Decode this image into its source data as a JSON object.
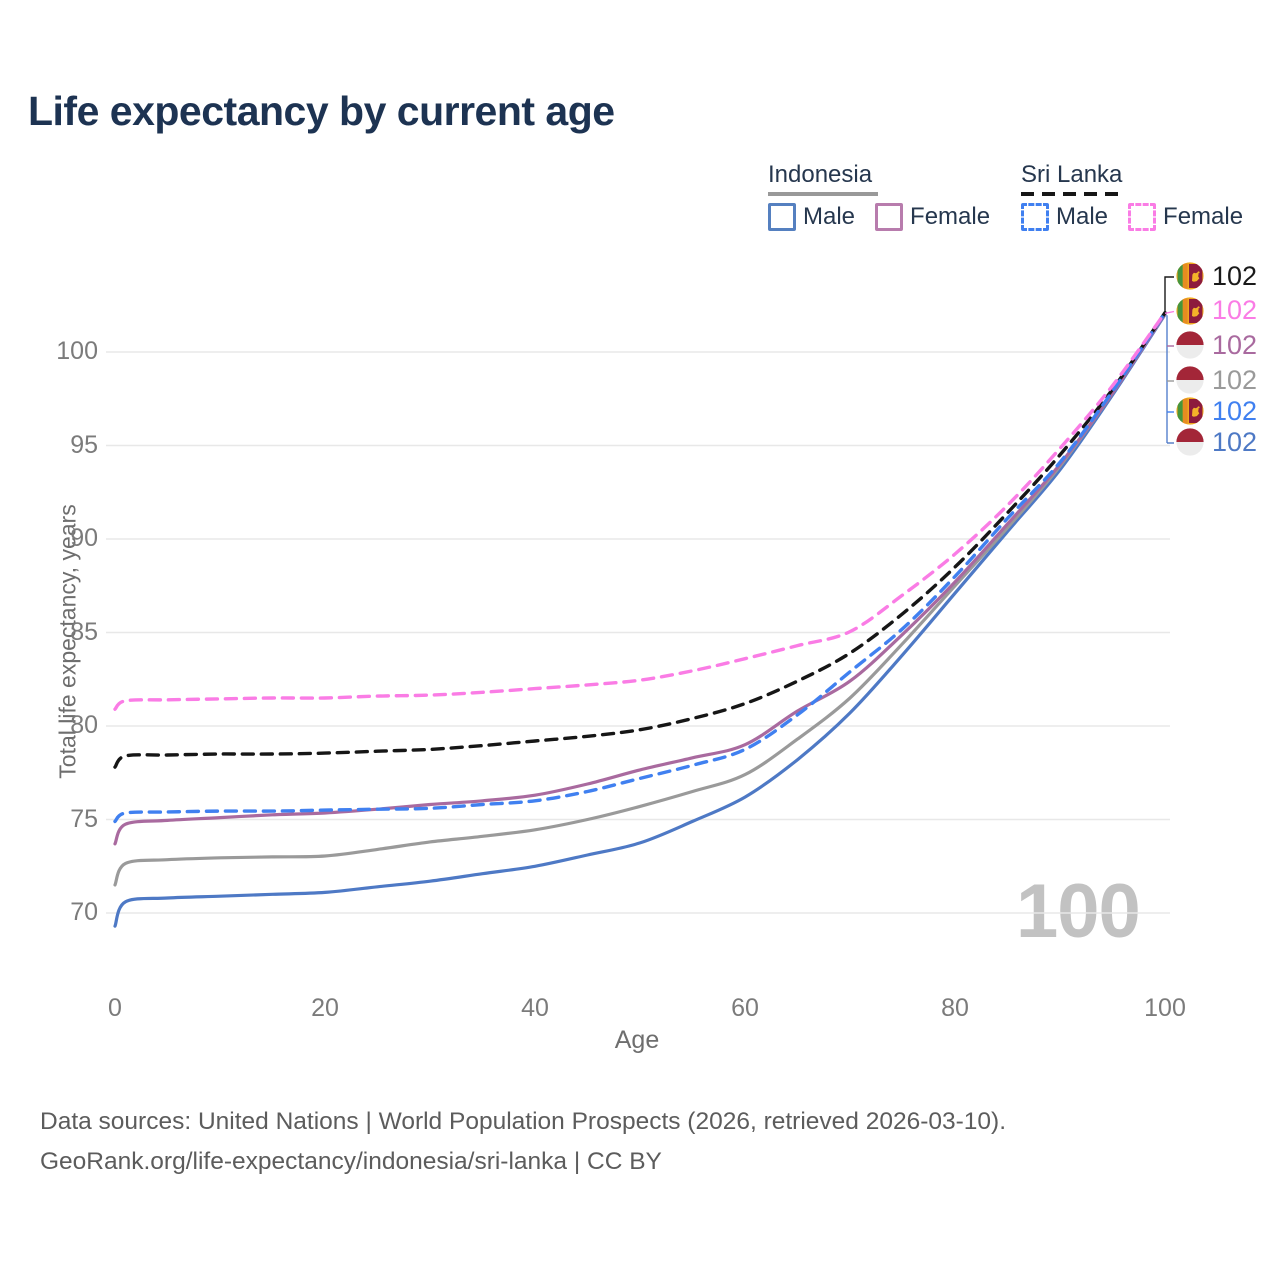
{
  "title": "Life expectancy by current age",
  "legend": {
    "groups": [
      {
        "name": "Indonesia",
        "line_style": "solid",
        "line_color": "#999999",
        "items": [
          {
            "label": "Male",
            "color": "#5580c0",
            "dash": false
          },
          {
            "label": "Female",
            "color": "#b87cad",
            "dash": false
          }
        ]
      },
      {
        "name": "Sri Lanka",
        "line_style": "dashed",
        "line_color": "#161616",
        "items": [
          {
            "label": "Male",
            "color": "#4080f0",
            "dash": true
          },
          {
            "label": "Female",
            "color": "#fa7ce5",
            "dash": true
          }
        ]
      }
    ]
  },
  "watermark": "100",
  "end_labels": [
    {
      "flag": "sri-lanka",
      "value": "102",
      "color": "#1a1a1a"
    },
    {
      "flag": "sri-lanka",
      "value": "102",
      "color": "#fa7ce5"
    },
    {
      "flag": "indonesia",
      "value": "102",
      "color": "#a96a9f"
    },
    {
      "flag": "indonesia",
      "value": "102",
      "color": "#9a9a9a"
    },
    {
      "flag": "sri-lanka",
      "value": "102",
      "color": "#4080f0"
    },
    {
      "flag": "indonesia",
      "value": "102",
      "color": "#4e79c5"
    }
  ],
  "footer": {
    "line1": "Data sources: United Nations | World Population Prospects (2026, retrieved 2026-03-10).",
    "line2": "GeoRank.org/life-expectancy/indonesia/sri-lanka | CC BY"
  },
  "chart_data": {
    "type": "line",
    "title": "Life expectancy by current age",
    "xlabel": "Age",
    "ylabel": "Total life expectancy, years",
    "xlim": [
      0,
      100
    ],
    "ylim": [
      69,
      103
    ],
    "grid": "horizontal",
    "legend_position": "top-right",
    "xticks": [
      0,
      20,
      40,
      60,
      80,
      100
    ],
    "yticks": [
      70,
      75,
      80,
      85,
      90,
      95,
      100
    ],
    "x": [
      0,
      1,
      5,
      10,
      15,
      20,
      25,
      30,
      35,
      40,
      45,
      50,
      55,
      60,
      65,
      70,
      75,
      80,
      85,
      90,
      95,
      100
    ],
    "series": [
      {
        "name": "Sri Lanka Female",
        "color": "#fa7ce5",
        "dash": true,
        "values": [
          80.9,
          81.35,
          81.4,
          81.45,
          81.5,
          81.5,
          81.6,
          81.65,
          81.8,
          82.0,
          82.2,
          82.45,
          82.95,
          83.6,
          84.3,
          85.05,
          87.0,
          89.2,
          91.8,
          94.85,
          98.2,
          102.1
        ]
      },
      {
        "name": "Sri Lanka Total",
        "color": "#161616",
        "dash": true,
        "values": [
          77.8,
          78.4,
          78.45,
          78.5,
          78.5,
          78.55,
          78.65,
          78.75,
          78.95,
          79.2,
          79.45,
          79.8,
          80.4,
          81.2,
          82.4,
          83.9,
          86.0,
          88.5,
          91.4,
          94.5,
          98.0,
          102.1
        ]
      },
      {
        "name": "Sri Lanka Male",
        "color": "#4080f0",
        "dash": true,
        "values": [
          74.9,
          75.35,
          75.4,
          75.45,
          75.45,
          75.5,
          75.55,
          75.6,
          75.8,
          76.0,
          76.5,
          77.2,
          77.9,
          78.75,
          80.6,
          82.9,
          85.2,
          88.0,
          91.1,
          94.1,
          97.9,
          102.1
        ]
      },
      {
        "name": "Indonesia Female",
        "color": "#a96a9f",
        "dash": false,
        "values": [
          73.7,
          74.75,
          74.95,
          75.1,
          75.25,
          75.35,
          75.55,
          75.8,
          76.0,
          76.3,
          76.9,
          77.65,
          78.3,
          79.0,
          80.8,
          82.4,
          84.9,
          87.7,
          90.8,
          94.0,
          97.8,
          102.05
        ]
      },
      {
        "name": "Indonesia Total",
        "color": "#9a9a9a",
        "dash": false,
        "values": [
          71.5,
          72.65,
          72.85,
          72.95,
          73.0,
          73.05,
          73.4,
          73.8,
          74.1,
          74.45,
          75.0,
          75.7,
          76.5,
          77.4,
          79.3,
          81.5,
          84.4,
          87.5,
          90.6,
          93.9,
          97.8,
          102.05
        ]
      },
      {
        "name": "Indonesia Male",
        "color": "#4e79c5",
        "dash": false,
        "values": [
          69.3,
          70.6,
          70.8,
          70.9,
          71.0,
          71.1,
          71.4,
          71.7,
          72.1,
          72.5,
          73.1,
          73.75,
          74.9,
          76.2,
          78.2,
          80.7,
          83.8,
          87.1,
          90.4,
          93.7,
          97.7,
          102.0
        ]
      }
    ],
    "end_value_labels": [
      102,
      102,
      102,
      102,
      102,
      102
    ]
  }
}
